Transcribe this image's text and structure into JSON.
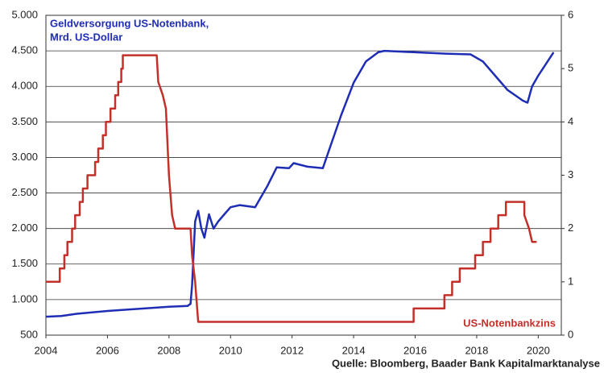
{
  "chart_data": {
    "type": "line",
    "xlim": [
      2004,
      2020.75
    ],
    "xticks": [
      2004,
      2006,
      2008,
      2010,
      2012,
      2014,
      2016,
      2018,
      2020
    ],
    "ylim": [
      500,
      5000
    ],
    "yticks": [
      {
        "value": 500,
        "label": "500"
      },
      {
        "value": 1000,
        "label": "1.000"
      },
      {
        "value": 1500,
        "label": "1.500"
      },
      {
        "value": 2000,
        "label": "2.000"
      },
      {
        "value": 2500,
        "label": "2.500"
      },
      {
        "value": 3000,
        "label": "3.000"
      },
      {
        "value": 3500,
        "label": "3.500"
      },
      {
        "value": 4000,
        "label": "4.000"
      },
      {
        "value": 4500,
        "label": "4.500"
      },
      {
        "value": 5000,
        "label": "5.000"
      }
    ],
    "y2lim": [
      0,
      6
    ],
    "y2ticks": [
      0,
      1,
      2,
      3,
      4,
      5,
      6
    ],
    "grid": true,
    "source": "Quelle: Bloomberg, Baader Bank Kapitalmarktanalyse",
    "series": [
      {
        "name": [
          "Geldversorgung US-Notenbank,",
          "Mrd. US-Dollar"
        ],
        "color": "#1f2db5",
        "x": [
          2004,
          2004.5,
          2005,
          2006,
          2007,
          2008,
          2008.6,
          2008.7,
          2008.75,
          2008.85,
          2008.95,
          2009.05,
          2009.15,
          2009.3,
          2009.45,
          2009.6,
          2009.8,
          2010,
          2010.3,
          2010.8,
          2011.2,
          2011.5,
          2011.9,
          2012.05,
          2012.5,
          2013,
          2013.2,
          2013.6,
          2014,
          2014.4,
          2014.8,
          2015,
          2016,
          2017,
          2017.8,
          2018.2,
          2018.6,
          2019,
          2019.5,
          2019.65,
          2019.8,
          2020,
          2020.5
        ],
        "values": [
          760,
          770,
          800,
          840,
          870,
          900,
          910,
          940,
          1200,
          2100,
          2250,
          2000,
          1870,
          2200,
          2000,
          2100,
          2200,
          2300,
          2330,
          2300,
          2600,
          2860,
          2850,
          2920,
          2870,
          2850,
          3100,
          3600,
          4050,
          4350,
          4480,
          4500,
          4480,
          4460,
          4450,
          4350,
          4150,
          3950,
          3800,
          3770,
          4000,
          4150,
          4480
        ]
      },
      {
        "name": [
          "US-Notenbankzins"
        ],
        "color": "#c3302a",
        "axis": "y2",
        "x": [
          2004,
          2004.45,
          2004.45,
          2004.6,
          2004.6,
          2004.7,
          2004.7,
          2004.85,
          2004.85,
          2004.95,
          2004.95,
          2005.1,
          2005.1,
          2005.2,
          2005.2,
          2005.35,
          2005.35,
          2005.6,
          2005.6,
          2005.7,
          2005.7,
          2005.85,
          2005.85,
          2005.95,
          2005.95,
          2006.1,
          2006.1,
          2006.25,
          2006.25,
          2006.35,
          2006.35,
          2006.45,
          2006.45,
          2006.5,
          2006.5,
          2007.6,
          2007.65,
          2007.8,
          2007.9,
          2008.0,
          2008.1,
          2008.2,
          2008.7,
          2008.75,
          2008.85,
          2008.95,
          2015.95,
          2015.95,
          2016.95,
          2016.95,
          2017.2,
          2017.2,
          2017.45,
          2017.45,
          2017.95,
          2017.95,
          2018.2,
          2018.2,
          2018.45,
          2018.45,
          2018.7,
          2018.7,
          2018.95,
          2018.95,
          2019.55,
          2019.55,
          2019.7,
          2019.8,
          2019.95
        ],
        "values": [
          1,
          1,
          1.25,
          1.25,
          1.5,
          1.5,
          1.75,
          1.75,
          2.0,
          2.0,
          2.25,
          2.25,
          2.5,
          2.5,
          2.75,
          2.75,
          3.0,
          3.0,
          3.25,
          3.25,
          3.5,
          3.5,
          3.75,
          3.75,
          4.0,
          4.0,
          4.25,
          4.25,
          4.5,
          4.5,
          4.75,
          4.75,
          5.0,
          5.0,
          5.25,
          5.25,
          4.75,
          4.5,
          4.25,
          3.0,
          2.25,
          2.0,
          2.0,
          1.5,
          1.0,
          0.25,
          0.25,
          0.5,
          0.5,
          0.75,
          0.75,
          1.0,
          1.0,
          1.25,
          1.25,
          1.5,
          1.5,
          1.75,
          1.75,
          2.0,
          2.0,
          2.25,
          2.25,
          2.5,
          2.5,
          2.25,
          2.0,
          1.75,
          1.75
        ]
      }
    ]
  }
}
